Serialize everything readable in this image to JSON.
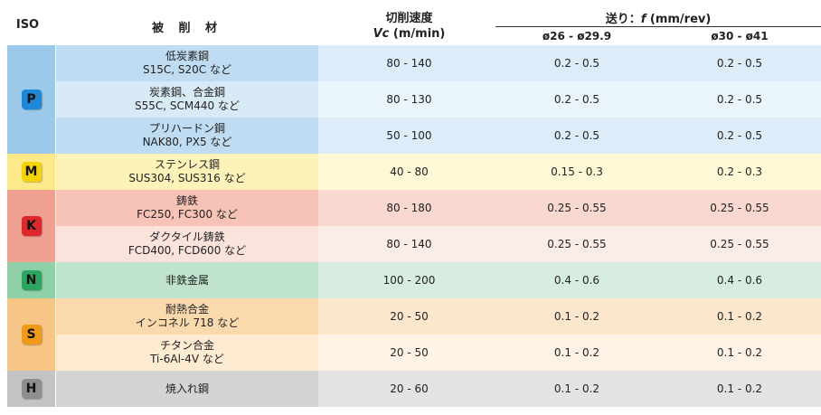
{
  "header": {
    "iso": "ISO",
    "material": "被 削 材",
    "speed_title": "切削速度",
    "speed_sub_prefix": "Vc",
    "speed_sub_unit": " (m/min)",
    "feed_title_prefix": "送り：",
    "feed_title_var": "f",
    "feed_title_unit": " (mm/rev)",
    "feed_col1": "ø26 - ø29.9",
    "feed_col2": "ø30 - ø41"
  },
  "groups": [
    {
      "code": "P",
      "color_left": "#9cc9ea",
      "rows": [
        {
          "mat1": "低炭素鋼",
          "mat2": "S15C, S20C など",
          "speed": "80 - 140",
          "f1": "0.2 - 0.5",
          "f2": "0.2 - 0.5",
          "bg_mat": "#bfdcf2",
          "bg": "#dcedf9"
        },
        {
          "mat1": "炭素鋼、合金鋼",
          "mat2": "S55C, SCM440 など",
          "speed": "80 - 130",
          "f1": "0.2 - 0.5",
          "f2": "0.2 - 0.5",
          "bg_mat": "#d9eaf7",
          "bg": "#eaf4fb"
        },
        {
          "mat1": "プリハードン鋼",
          "mat2": "NAK80, PX5 など",
          "speed": "50 - 100",
          "f1": "0.2 - 0.5",
          "f2": "0.2 - 0.5",
          "bg_mat": "#bfdcf2",
          "bg": "#dcedf9"
        }
      ]
    },
    {
      "code": "M",
      "color_left": "#fbe98a",
      "rows": [
        {
          "mat1": "ステンレス鋼",
          "mat2": "SUS304, SUS316 など",
          "speed": "40 - 80",
          "f1": "0.15 - 0.3",
          "f2": "0.2 - 0.3",
          "bg_mat": "#fdf3b8",
          "bg": "#fef8d6"
        }
      ]
    },
    {
      "code": "K",
      "color_left": "#f0a090",
      "rows": [
        {
          "mat1": "鋳鉄",
          "mat2": "FC250, FC300 など",
          "speed": "80 - 180",
          "f1": "0.25 - 0.55",
          "f2": "0.25 - 0.55",
          "bg_mat": "#f6c3b6",
          "bg": "#f9d8cf"
        },
        {
          "mat1": "ダクタイル鋳鉄",
          "mat2": "FCD400, FCD600 など",
          "speed": "80 - 140",
          "f1": "0.25 - 0.55",
          "f2": "0.25 - 0.55",
          "bg_mat": "#fbe3dc",
          "bg": "#fcece7"
        }
      ]
    },
    {
      "code": "N",
      "color_left": "#8fd0a8",
      "rows": [
        {
          "mat1": "非鉄金属",
          "mat2": "",
          "speed": "100 - 200",
          "f1": "0.4 - 0.6",
          "f2": "0.4 - 0.6",
          "bg_mat": "#bfe3cc",
          "bg": "#d7ede0"
        }
      ]
    },
    {
      "code": "S",
      "color_left": "#f7c585",
      "rows": [
        {
          "mat1": "耐熱合金",
          "mat2": "インコネル 718 など",
          "speed": "20 - 50",
          "f1": "0.1 - 0.2",
          "f2": "0.1 - 0.2",
          "bg_mat": "#fad9ad",
          "bg": "#fce7cc"
        },
        {
          "mat1": "チタン合金",
          "mat2": "Ti-6Al-4V など",
          "speed": "20 - 50",
          "f1": "0.1 - 0.2",
          "f2": "0.1 - 0.2",
          "bg_mat": "#fdebd2",
          "bg": "#fef3e4"
        }
      ]
    },
    {
      "code": "H",
      "color_left": "#c4c4c4",
      "rows": [
        {
          "mat1": "焼入れ鋼",
          "mat2": "",
          "speed": "20 - 60",
          "f1": "0.1 - 0.2",
          "f2": "0.1 - 0.2",
          "bg_mat": "#d4d4d4",
          "bg": "#e3e3e3"
        }
      ]
    }
  ]
}
